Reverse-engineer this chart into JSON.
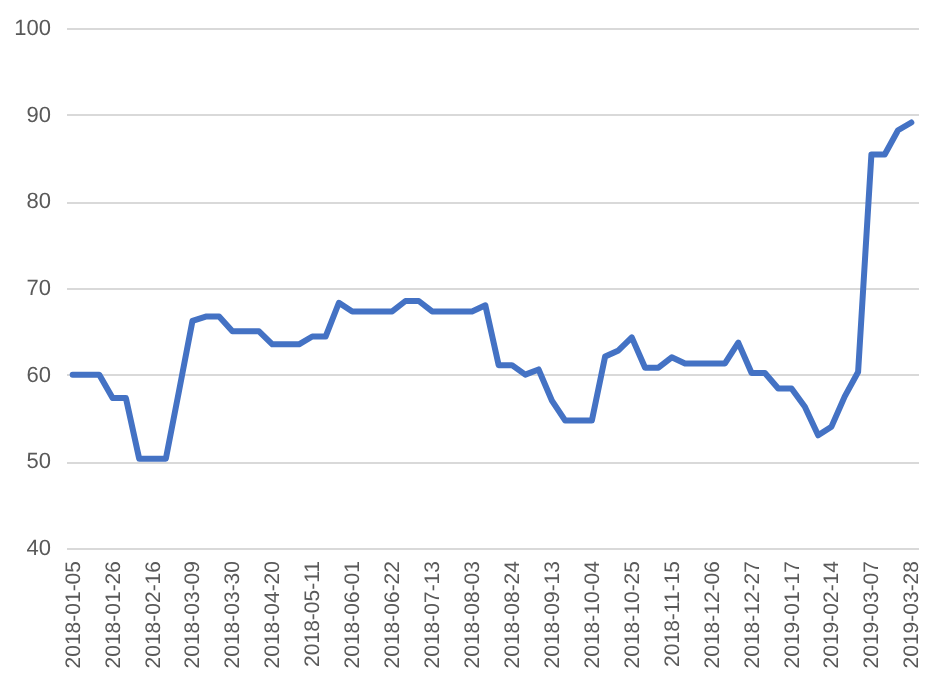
{
  "chart_data": {
    "type": "line",
    "categories": [
      "2018-01-05",
      null,
      null,
      "2018-01-26",
      null,
      null,
      "2018-02-16",
      null,
      null,
      "2018-03-09",
      null,
      null,
      "2018-03-30",
      null,
      null,
      "2018-04-20",
      null,
      null,
      "2018-05-11",
      null,
      null,
      "2018-06-01",
      null,
      null,
      "2018-06-22",
      null,
      null,
      "2018-07-13",
      null,
      null,
      "2018-08-03",
      null,
      null,
      "2018-08-24",
      null,
      null,
      "2018-09-13",
      null,
      null,
      "2018-10-04",
      null,
      null,
      "2018-10-25",
      null,
      null,
      "2018-11-15",
      null,
      null,
      "2018-12-06",
      null,
      null,
      "2018-12-27",
      null,
      null,
      "2019-01-17",
      null,
      null,
      "2019-02-14",
      null,
      null,
      "2019-03-07",
      null,
      null,
      "2019-03-28"
    ],
    "series": [
      {
        "color": "#4472c4",
        "values": [
          60,
          60,
          60,
          57.3,
          57.3,
          50.3,
          50.3,
          50.3,
          58.2,
          66.2,
          66.7,
          66.7,
          65,
          65,
          65,
          63.5,
          63.5,
          63.5,
          64.4,
          64.4,
          68.3,
          67.3,
          67.3,
          67.3,
          67.3,
          68.5,
          68.5,
          67.3,
          67.3,
          67.3,
          67.3,
          68,
          61.1,
          61.1,
          60,
          60.6,
          57,
          54.7,
          54.7,
          54.7,
          62.1,
          62.8,
          64.3,
          60.8,
          60.8,
          62,
          61.3,
          61.3,
          61.3,
          61.3,
          63.7,
          60.2,
          60.2,
          58.4,
          58.4,
          56.3,
          53,
          54,
          57.5,
          60.3,
          85.4,
          85.4,
          88.2,
          89.1
        ]
      }
    ],
    "ylim": [
      40,
      100
    ],
    "yticks": [
      40,
      50,
      60,
      70,
      80,
      90,
      100
    ],
    "grid": "y",
    "marker": "none",
    "line_style": "solid"
  }
}
